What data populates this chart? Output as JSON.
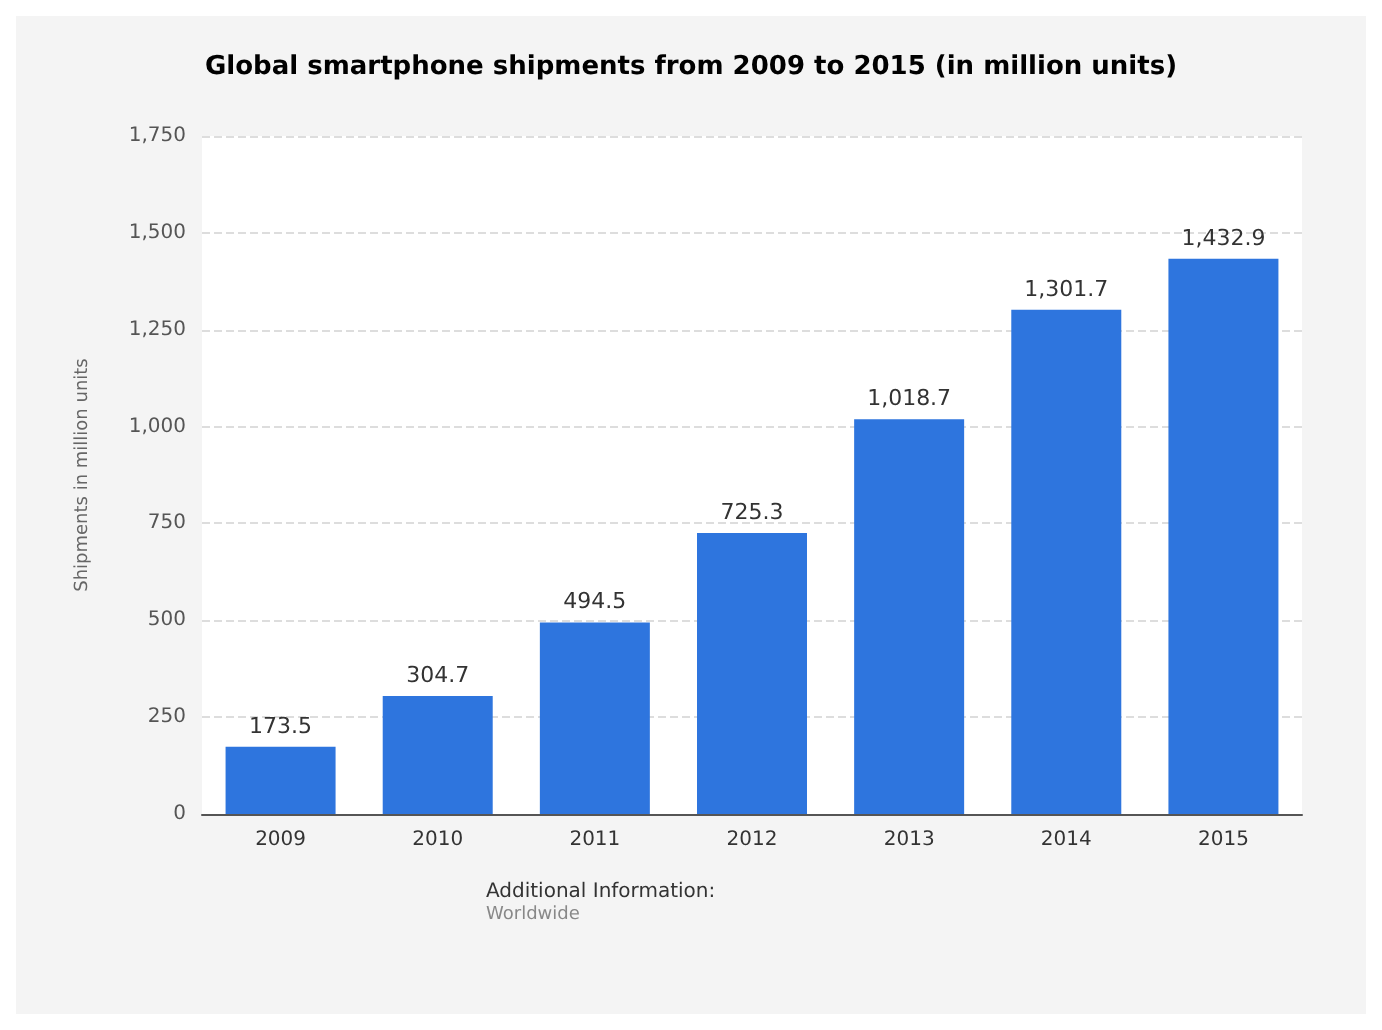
{
  "chart_data": {
    "type": "bar",
    "title": "Global smartphone shipments from 2009 to 2015 (in million units)",
    "ylabel": "Shipments in million units",
    "categories": [
      "2009",
      "2010",
      "2011",
      "2012",
      "2013",
      "2014",
      "2015"
    ],
    "values": [
      173.5,
      304.7,
      494.5,
      725.3,
      1018.7,
      1301.7,
      1432.9
    ],
    "color": "#2e75de",
    "value_labels": [
      "173.5",
      "304.7",
      "494.5",
      "725.3",
      "1,018.7",
      "1,301.7",
      "1,432.9"
    ],
    "ylim": [
      0,
      1750
    ],
    "yticks": [
      0,
      250,
      500,
      750,
      {
        "value": 1000,
        "label": "1,000"
      },
      {
        "value": 1250,
        "label": "1,250"
      },
      {
        "value": 1500,
        "label": "1,500"
      },
      {
        "value": 1750,
        "label": "1,750"
      }
    ],
    "grid": "y",
    "annotations": [
      "Additional Information:",
      "Worldwide"
    ]
  }
}
